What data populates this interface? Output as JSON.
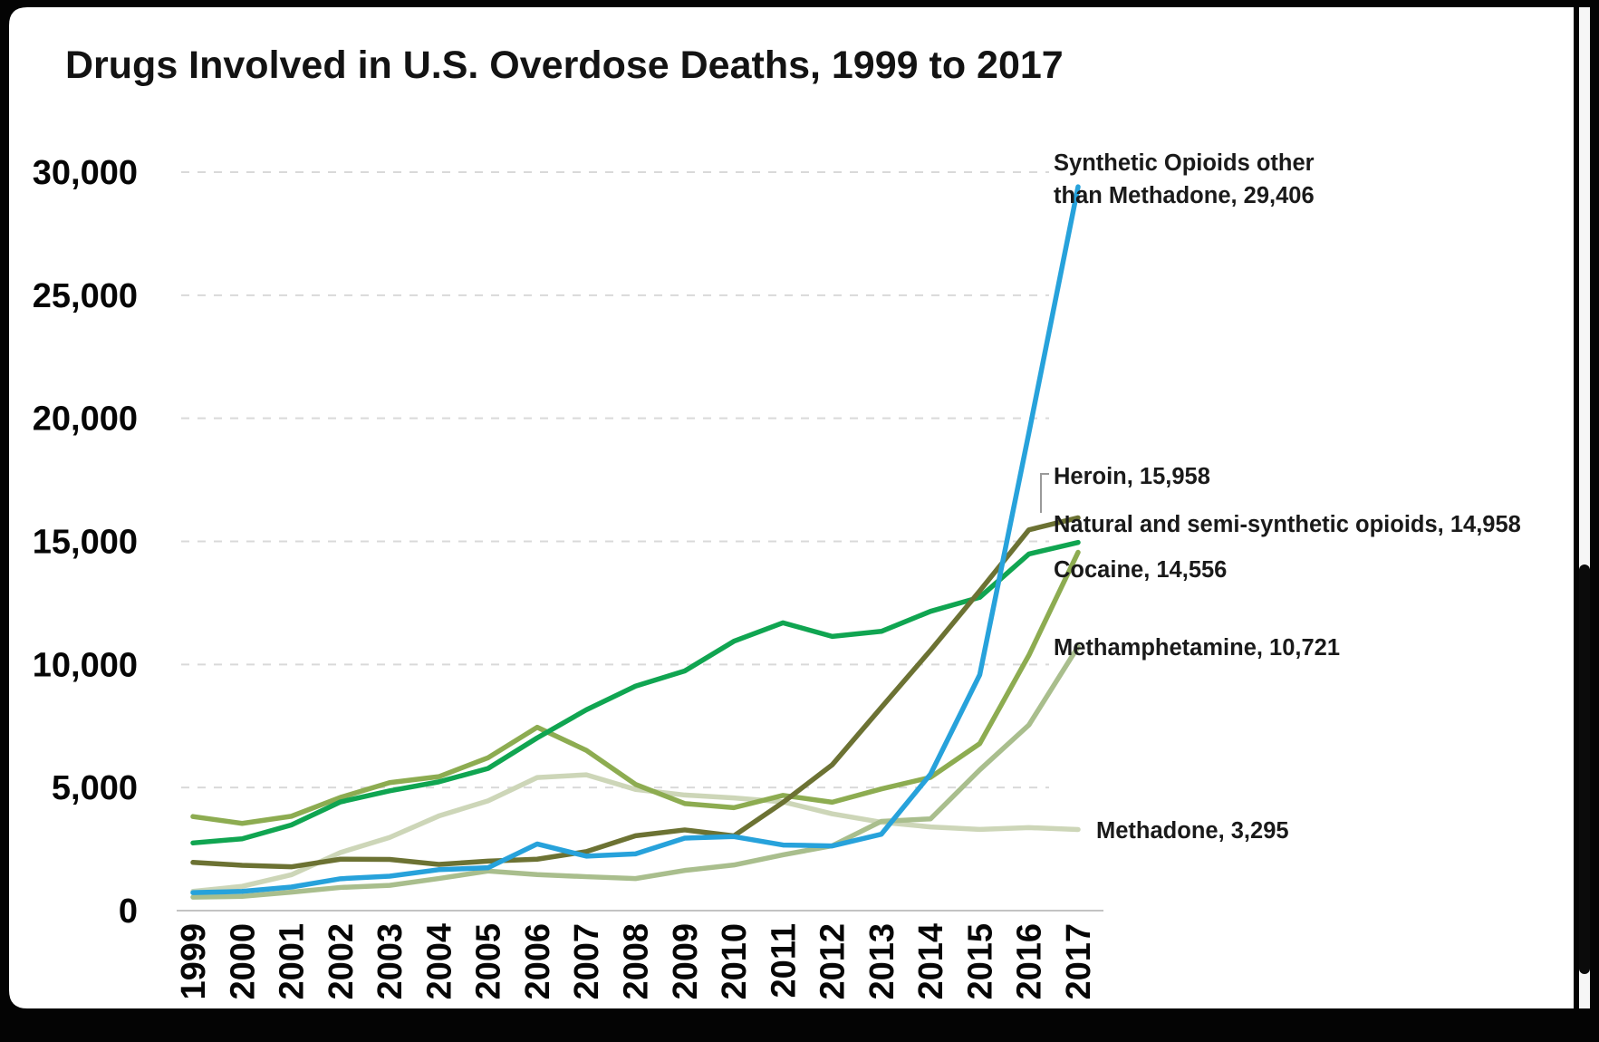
{
  "chart_data": {
    "type": "line",
    "title": "Drugs Involved in U.S. Overdose Deaths, 1999 to 2017",
    "x": [
      "1999",
      "2000",
      "2001",
      "2002",
      "2003",
      "2004",
      "2005",
      "2006",
      "2007",
      "2008",
      "2009",
      "2010",
      "2011",
      "2012",
      "2013",
      "2014",
      "2015",
      "2016",
      "2017"
    ],
    "xlabel": "",
    "ylabel": "",
    "ylim": [
      0,
      30000
    ],
    "yticks": [
      0,
      5000,
      10000,
      15000,
      20000,
      25000,
      30000
    ],
    "ytick_labels": [
      "0",
      "5,000",
      "10,000",
      "15,000",
      "20,000",
      "25,000",
      "30,000"
    ],
    "grid": "horizontal-dashed",
    "gridline_color": "#d9d9d9",
    "axis_color": "#c3c3c3",
    "legend_position": "end-of-line labels at right",
    "series": [
      {
        "name": "Synthetic Opioids other than Methadone",
        "color": "#27a2db",
        "final_value": 29406,
        "label_lines": [
          "Synthetic Opioids other",
          "than Methadone, 29,406"
        ],
        "values": [
          730,
          782,
          957,
          1295,
          1400,
          1664,
          1742,
          2707,
          2213,
          2306,
          2946,
          3007,
          2666,
          2628,
          3105,
          5544,
          9580,
          19413,
          29406
        ]
      },
      {
        "name": "Heroin",
        "color": "#6c7233",
        "final_value": 15958,
        "label_lines": [
          "Heroin, 15,958"
        ],
        "values": [
          1960,
          1842,
          1779,
          2089,
          2080,
          1878,
          2009,
          2088,
          2399,
          3041,
          3278,
          3036,
          4397,
          5925,
          8257,
          10574,
          12989,
          15469,
          15958
        ]
      },
      {
        "name": "Natural and semi-synthetic opioids",
        "color": "#10a551",
        "final_value": 14958,
        "label_lines": [
          "Natural and semi-synthetic opioids, 14,958"
        ],
        "values": [
          2749,
          2917,
          3479,
          4416,
          4867,
          5231,
          5774,
          7017,
          8158,
          9119,
          9735,
          10943,
          11693,
          11140,
          11346,
          12159,
          12727,
          14487,
          14958
        ]
      },
      {
        "name": "Cocaine",
        "color": "#8dac51",
        "final_value": 14556,
        "label_lines": [
          "Cocaine, 14,556"
        ],
        "values": [
          3822,
          3544,
          3833,
          4599,
          5199,
          5443,
          6208,
          7448,
          6512,
          5129,
          4350,
          4183,
          4681,
          4404,
          4944,
          5415,
          6784,
          10375,
          14556
        ]
      },
      {
        "name": "Methamphetamine",
        "color": "#a9be8d",
        "final_value": 10721,
        "label_lines": [
          "Methamphetamine, 10,721"
        ],
        "values": [
          547,
          578,
          749,
          941,
          1025,
          1305,
          1608,
          1462,
          1378,
          1302,
          1632,
          1854,
          2266,
          2635,
          3627,
          3728,
          5716,
          7542,
          10721
        ]
      },
      {
        "name": "Methadone",
        "color": "#cdd6b8",
        "final_value": 3295,
        "label_lines": [
          "Methadone, 3,295"
        ],
        "values": [
          784,
          986,
          1456,
          2360,
          2972,
          3845,
          4460,
          5406,
          5518,
          4924,
          4696,
          4577,
          4418,
          3932,
          3591,
          3400,
          3301,
          3373,
          3295
        ]
      }
    ]
  }
}
